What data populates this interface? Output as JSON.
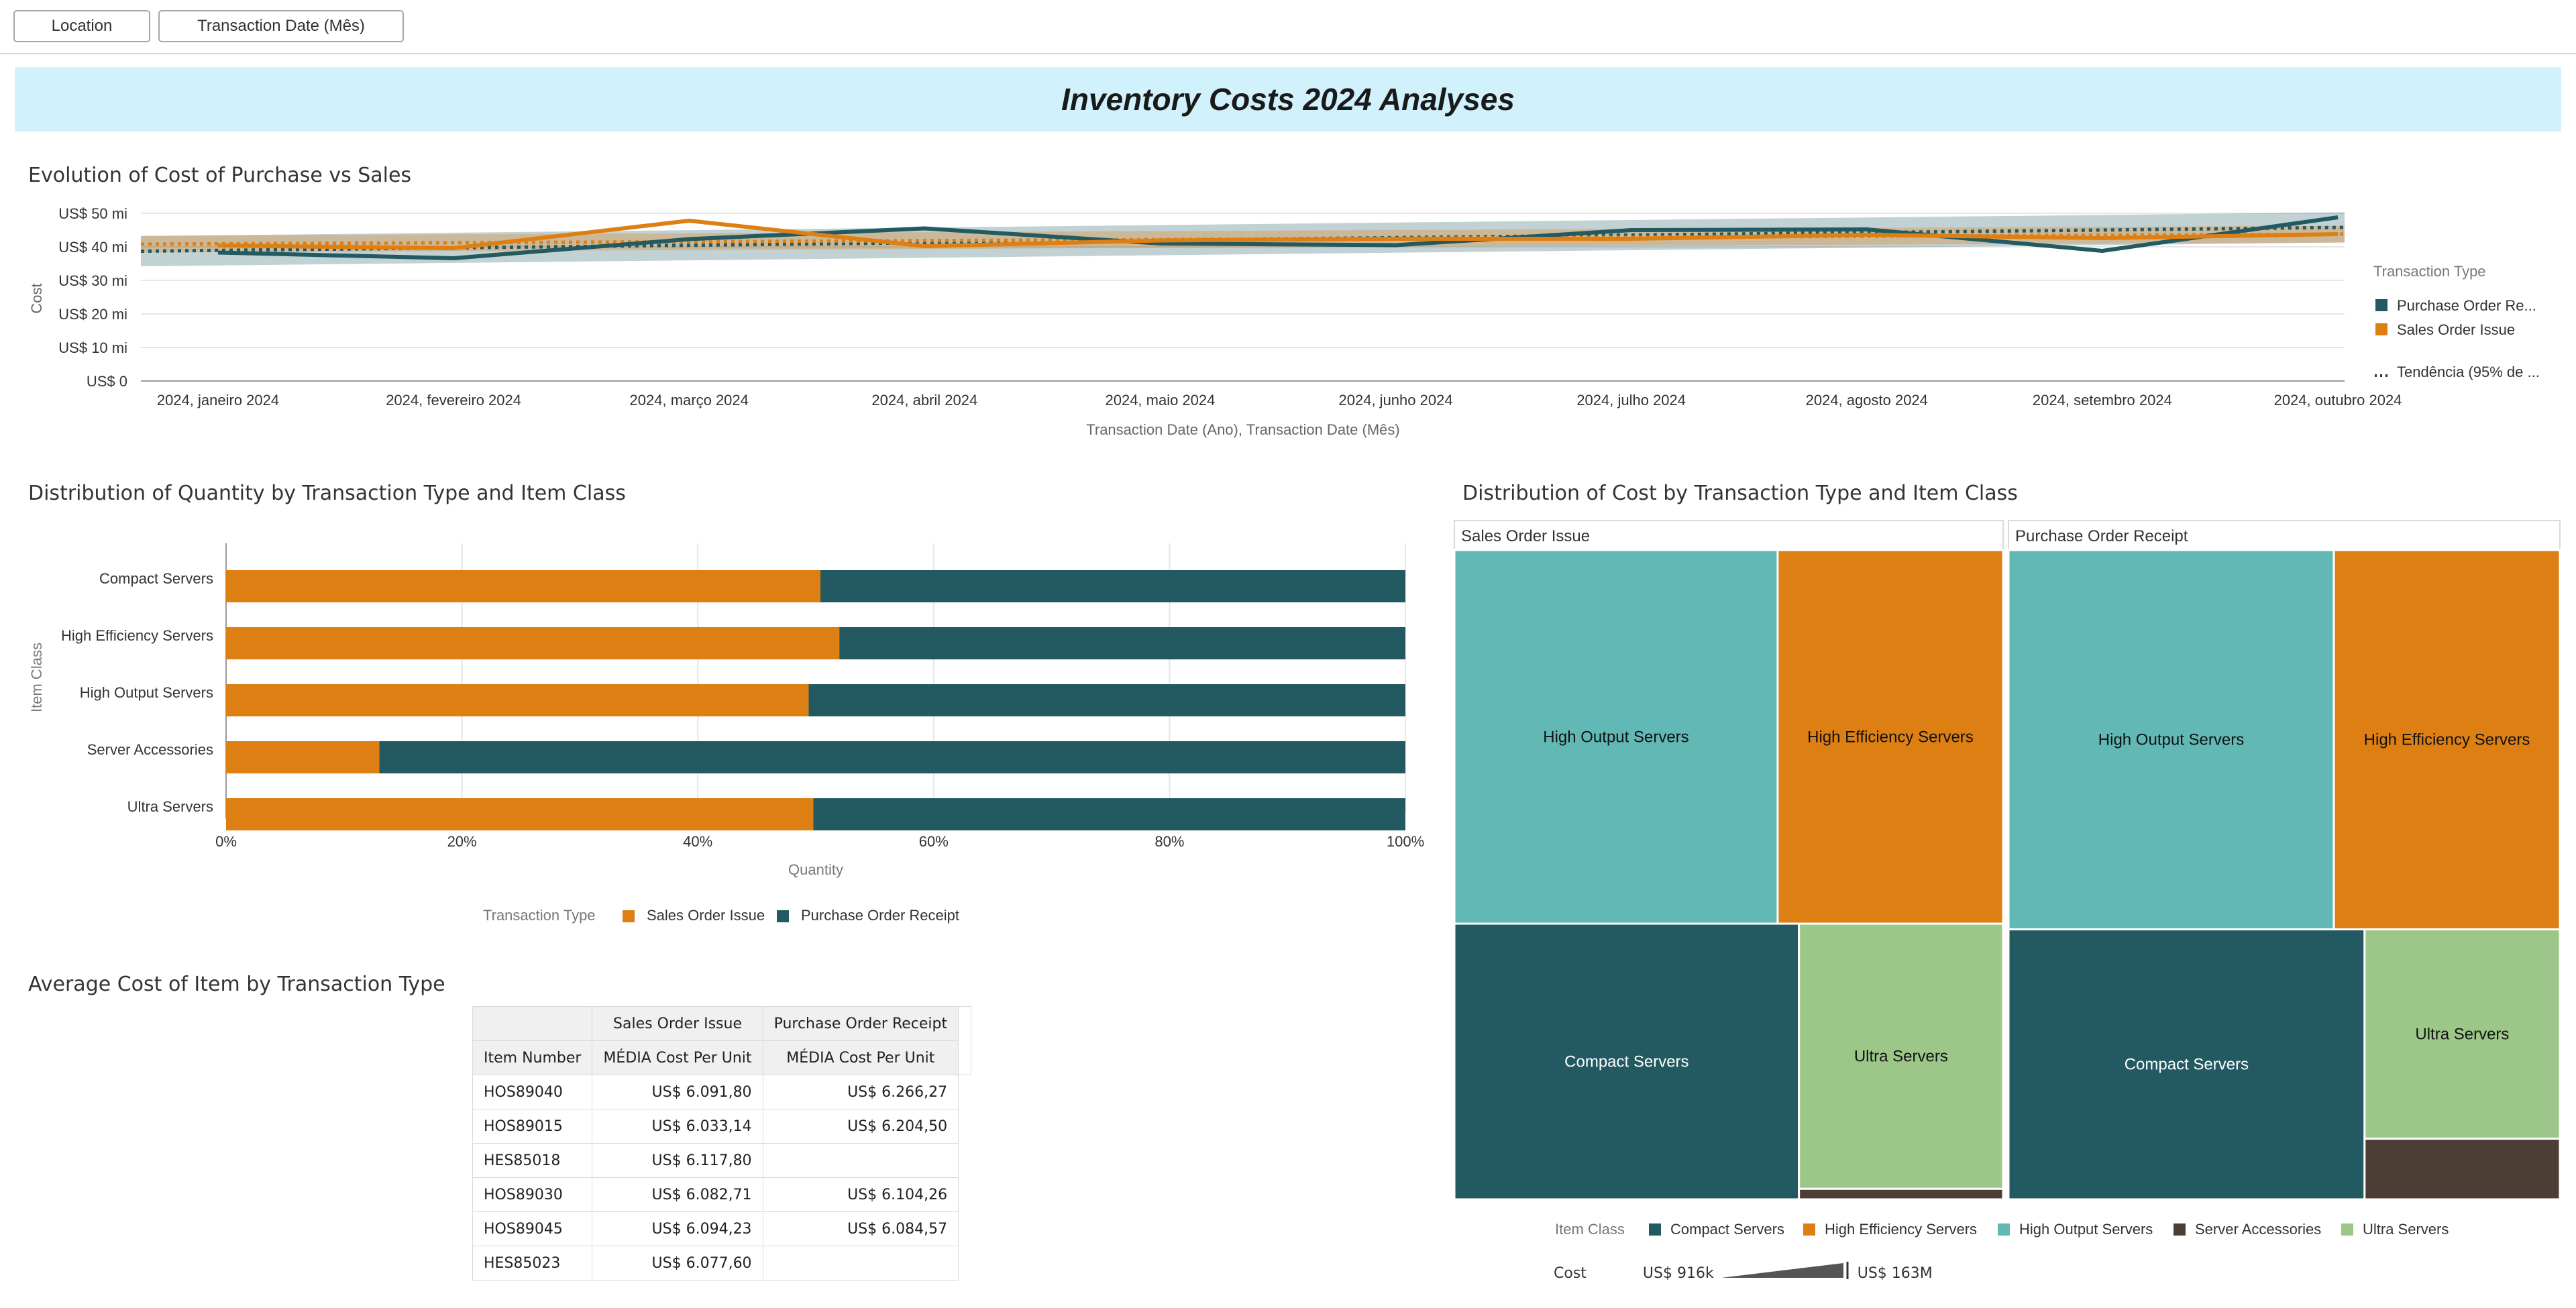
{
  "filters": {
    "location": "Location",
    "date": "Transaction Date (Mês)"
  },
  "page_title": "Inventory Costs 2024 Analyses",
  "line_section": {
    "title": "Evolution of Cost of Purchase vs Sales"
  },
  "bar_section": {
    "title": "Distribution of Quantity by Transaction Type and Item Class"
  },
  "treemap_section": {
    "title": "Distribution of Cost by Transaction Type and Item Class"
  },
  "table_section": {
    "title": "Average Cost of Item by Transaction Type"
  },
  "colors": {
    "purchase": "#235a61",
    "sales": "#de7f13",
    "compact": "#235a61",
    "high_efficiency": "#de7f13",
    "high_output": "#61b8b5",
    "accessories": "#4d3e35",
    "ultra": "#9cc788"
  },
  "chart_data": [
    {
      "type": "line",
      "title": "Evolution of Cost of Purchase vs Sales",
      "xlabel": "Transaction Date (Ano), Transaction Date (Mês)",
      "ylabel": "Cost",
      "y_ticks": [
        "US$ 0",
        "US$ 10 mi",
        "US$ 20 mi",
        "US$ 30 mi",
        "US$ 40 mi",
        "US$ 50 mi"
      ],
      "ylim": [
        0,
        50
      ],
      "categories": [
        "2024, janeiro 2024",
        "2024, fevereiro 2024",
        "2024, março 2024",
        "2024, abril 2024",
        "2024, maio 2024",
        "2024, junho 2024",
        "2024, julho 2024",
        "2024, agosto 2024",
        "2024, setembro 2024",
        "2024, outubro 2024"
      ],
      "series": [
        {
          "name": "Purchase Order Re...",
          "color": "#235a61",
          "values": [
            38.3,
            36.6,
            42.3,
            45.5,
            41.0,
            40.5,
            45.0,
            45.2,
            38.8,
            48.8
          ]
        },
        {
          "name": "Sales Order Issue",
          "color": "#de7f13",
          "values": [
            40.4,
            39.6,
            47.8,
            40.2,
            41.9,
            42.4,
            42.4,
            43.6,
            42.6,
            43.8
          ]
        }
      ],
      "trend": {
        "label": "Tendência (95% de ...",
        "purchase": [
          38.7,
          45.8
        ],
        "sales": [
          40.8,
          43.8
        ],
        "purchase_band": 4.5,
        "sales_band": 2.5
      },
      "legend_title": "Transaction Type"
    },
    {
      "type": "bar",
      "title": "Distribution of Quantity by Transaction Type and Item Class",
      "xlabel": "Quantity",
      "ylabel": "Item Class",
      "categories": [
        "Compact Servers",
        "High Efficiency Servers",
        "High Output Servers",
        "Server Accessories",
        "Ultra Servers"
      ],
      "x_ticks": [
        "0%",
        "20%",
        "40%",
        "60%",
        "80%",
        "100%"
      ],
      "series": [
        {
          "name": "Sales Order Issue",
          "color": "#de7f13",
          "values": [
            50.4,
            52.0,
            49.4,
            13.0,
            49.8
          ]
        },
        {
          "name": "Purchase Order Receipt",
          "color": "#235a61",
          "values": [
            49.6,
            48.0,
            50.6,
            87.0,
            50.2
          ]
        }
      ],
      "legend_title": "Transaction Type"
    },
    {
      "type": "treemap",
      "title": "Distribution of Cost by Transaction Type and Item Class",
      "panels": [
        {
          "name": "Sales Order Issue",
          "items": [
            {
              "label": "High Output Servers",
              "class": "high_output",
              "value": 33.7
            },
            {
              "label": "High Efficiency Servers",
              "class": "high_efficiency",
              "value": 23.5
            },
            {
              "label": "Compact Servers",
              "class": "compact",
              "value": 26.5
            },
            {
              "label": "Ultra Servers",
              "class": "ultra",
              "value": 15.1
            },
            {
              "label": "",
              "class": "accessories",
              "value": 0.6
            }
          ]
        },
        {
          "name": "Purchase Order Receipt",
          "items": [
            {
              "label": "High Output Servers",
              "class": "high_output",
              "value": 34.4
            },
            {
              "label": "High Efficiency Servers",
              "class": "high_efficiency",
              "value": 23.9
            },
            {
              "label": "Compact Servers",
              "class": "compact",
              "value": 26.8
            },
            {
              "label": "Ultra Servers",
              "class": "ultra",
              "value": 11.4
            },
            {
              "label": "",
              "class": "accessories",
              "value": 3.3
            }
          ]
        }
      ],
      "legend_title": "Item Class",
      "legend": [
        "Compact Servers",
        "High Efficiency Servers",
        "High Output Servers",
        "Server Accessories",
        "Ultra Servers"
      ],
      "size_legend": {
        "label": "Cost",
        "min": "US$ 916k",
        "max": "US$ 163M"
      }
    },
    {
      "type": "table",
      "title": "Average Cost of Item by Transaction Type",
      "group_headers": [
        "Sales Order Issue",
        "Purchase Order Receipt"
      ],
      "row_header": "Item Number",
      "measure": "MÉDIA Cost Per Unit",
      "rows": [
        {
          "item": "HOS89040",
          "sales": "US$ 6.091,80",
          "purchase": "US$ 6.266,27"
        },
        {
          "item": "HOS89015",
          "sales": "US$ 6.033,14",
          "purchase": "US$ 6.204,50"
        },
        {
          "item": "HES85018",
          "sales": "US$ 6.117,80",
          "purchase": ""
        },
        {
          "item": "HOS89030",
          "sales": "US$ 6.082,71",
          "purchase": "US$ 6.104,26"
        },
        {
          "item": "HOS89045",
          "sales": "US$ 6.094,23",
          "purchase": "US$ 6.084,57"
        },
        {
          "item": "HES85023",
          "sales": "US$ 6.077,60",
          "purchase": ""
        }
      ]
    }
  ]
}
